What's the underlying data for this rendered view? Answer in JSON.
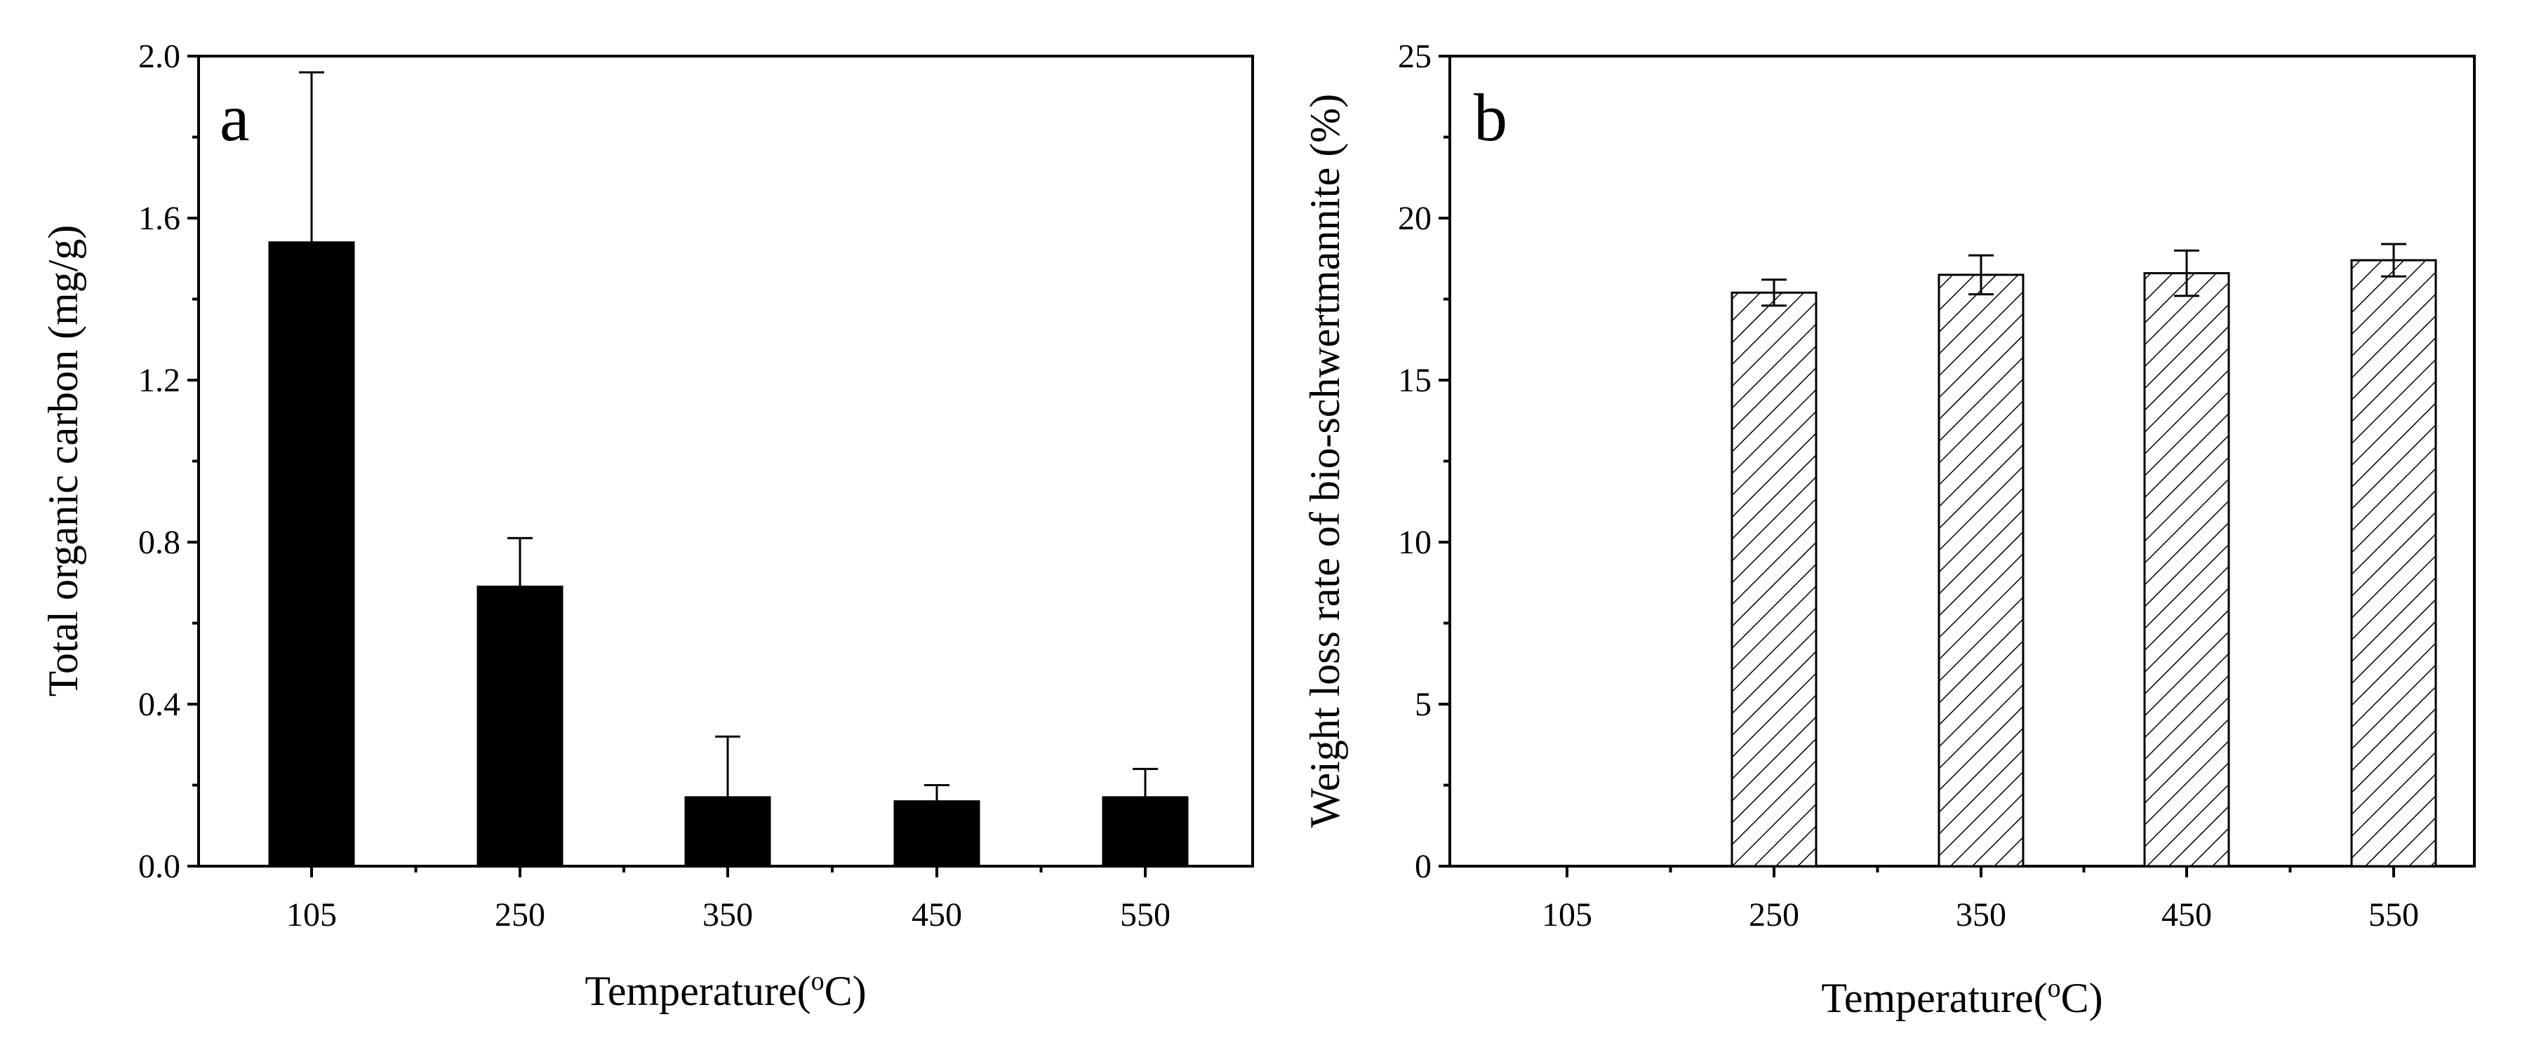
{
  "chart_data": [
    {
      "type": "bar",
      "panel_label": "a",
      "categories": [
        "105",
        "250",
        "350",
        "450",
        "550"
      ],
      "values": [
        1.54,
        0.69,
        0.17,
        0.16,
        0.17
      ],
      "errors": [
        0.42,
        0.12,
        0.15,
        0.04,
        0.07
      ],
      "error_style": "upper",
      "fill": "solid",
      "color": "#000000",
      "ylim": [
        0,
        2.0
      ],
      "yticks": [
        "0.0",
        "0.4",
        "0.8",
        "1.2",
        "1.6",
        "2.0"
      ],
      "ytick_values": [
        0,
        0.4,
        0.8,
        1.2,
        1.6,
        2.0
      ],
      "xlabel": "Temperature(",
      "xlabel_sup": "o",
      "xlabel_tail": "C)",
      "ylabel": "Total organic carbon (mg/g)",
      "grid": false,
      "legend": "none"
    },
    {
      "type": "bar",
      "panel_label": "b",
      "categories": [
        "105",
        "250",
        "350",
        "450",
        "550"
      ],
      "values": [
        0,
        17.7,
        18.25,
        18.3,
        18.7
      ],
      "errors": [
        0,
        0.4,
        0.6,
        0.7,
        0.5
      ],
      "error_style": "both",
      "fill": "hatched",
      "color": "#000000",
      "ylim": [
        0,
        25
      ],
      "yticks": [
        "0",
        "5",
        "10",
        "15",
        "20",
        "25"
      ],
      "ytick_values": [
        0,
        5,
        10,
        15,
        20,
        25
      ],
      "xlabel": "Temperature(",
      "xlabel_sup": "o",
      "xlabel_tail": "C)",
      "ylabel": "Weight loss rate of bio-schwertmannite (%)",
      "grid": false,
      "legend": "none"
    }
  ]
}
